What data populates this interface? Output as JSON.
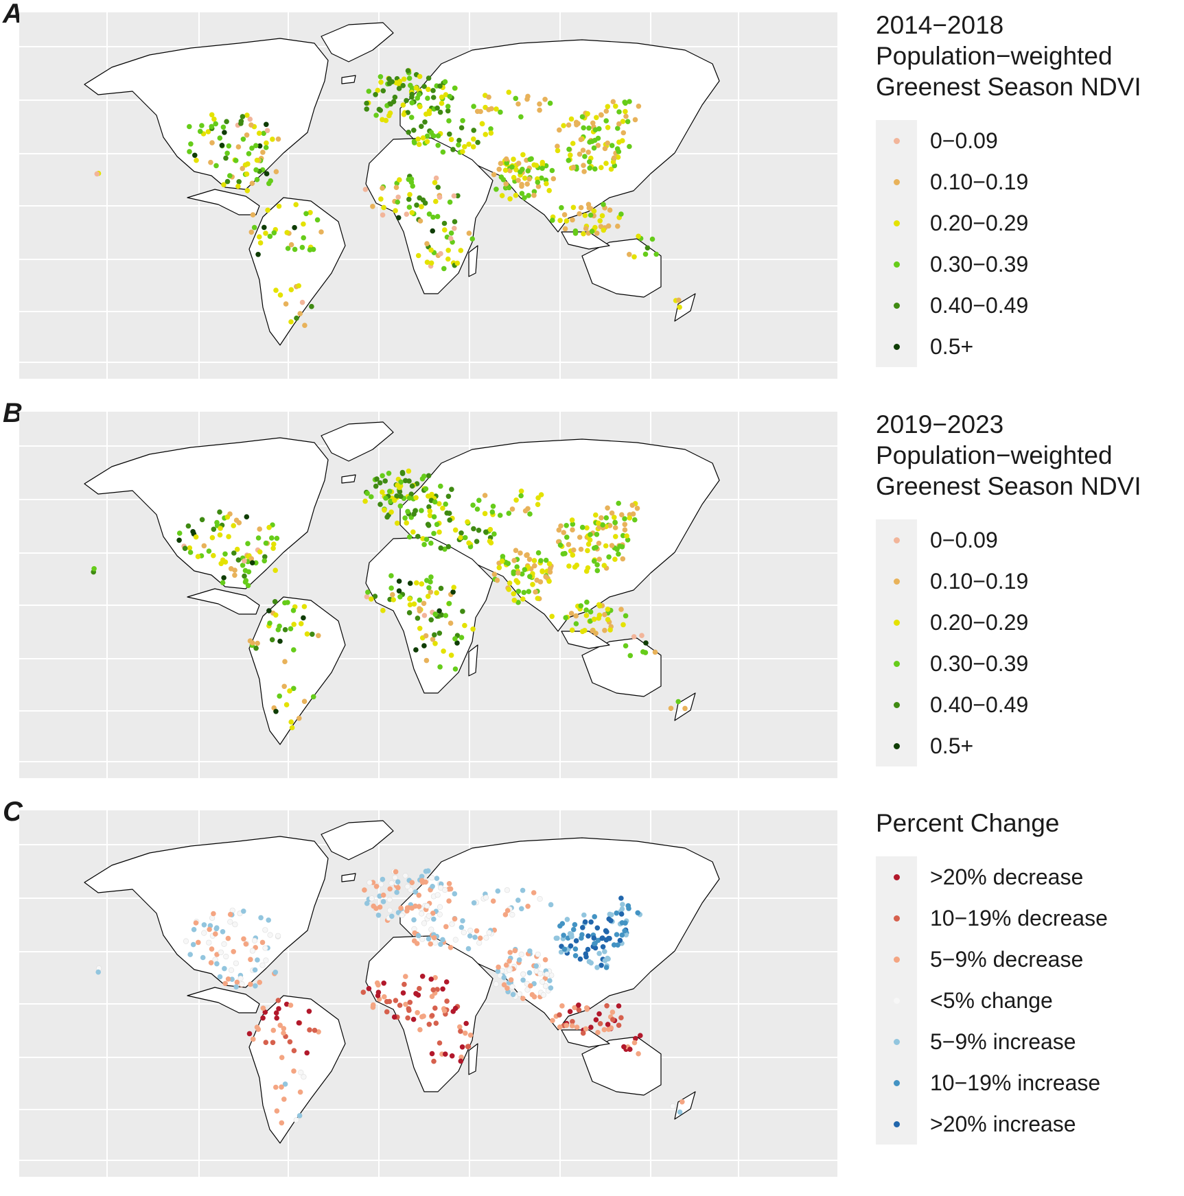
{
  "panels": [
    {
      "label": "A",
      "legend_title": "2014−2018\nPopulation−weighted\nGreenest Season NDVI",
      "legend": [
        {
          "label": "0−0.09",
          "color": "#f2b59a"
        },
        {
          "label": "0.10−0.19",
          "color": "#e8b25a"
        },
        {
          "label": "0.20−0.29",
          "color": "#e4e200"
        },
        {
          "label": "0.30−0.39",
          "color": "#66cc1a"
        },
        {
          "label": "0.40−0.49",
          "color": "#3f8a12"
        },
        {
          "label": "0.5+",
          "color": "#0f3d05"
        }
      ]
    },
    {
      "label": "B",
      "legend_title": "2019−2023\nPopulation−weighted\nGreenest Season NDVI",
      "legend": [
        {
          "label": "0−0.09",
          "color": "#f2b59a"
        },
        {
          "label": "0.10−0.19",
          "color": "#e8b25a"
        },
        {
          "label": "0.20−0.29",
          "color": "#e4e200"
        },
        {
          "label": "0.30−0.39",
          "color": "#66cc1a"
        },
        {
          "label": "0.40−0.49",
          "color": "#3f8a12"
        },
        {
          "label": "0.5+",
          "color": "#0f3d05"
        }
      ]
    },
    {
      "label": "C",
      "legend_title": "Percent Change",
      "legend": [
        {
          "label": ">20% decrease",
          "color": "#b2182b"
        },
        {
          "label": "10−19% decrease",
          "color": "#d6604d"
        },
        {
          "label": "5−9% decrease",
          "color": "#f4a582"
        },
        {
          "label": "<5% change",
          "color": "#f7f7f7"
        },
        {
          "label": "5−9% increase",
          "color": "#92c5de"
        },
        {
          "label": "10−19% increase",
          "color": "#4393c3"
        },
        {
          "label": ">20% increase",
          "color": "#2166ac"
        }
      ]
    }
  ]
}
